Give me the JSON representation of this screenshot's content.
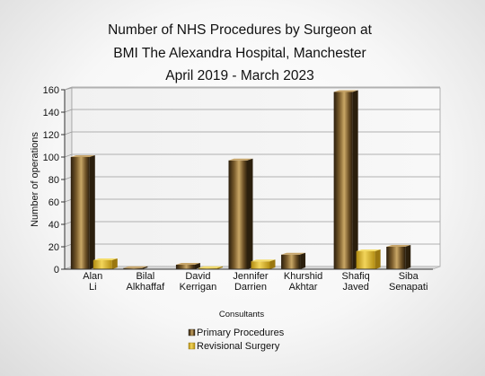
{
  "chart_data": {
    "type": "bar",
    "title": [
      "Number of NHS Procedures by Surgeon at",
      "BMI The Alexandra Hospital, Manchester",
      "April 2019 - March 2023"
    ],
    "xlabel": "Consultants",
    "ylabel": "Number of operations",
    "ylim": [
      0,
      160
    ],
    "yticks": [
      0,
      20,
      40,
      60,
      80,
      100,
      120,
      140,
      160
    ],
    "grid": true,
    "legend_position": "bottom",
    "categories": [
      [
        "Alan",
        "Li"
      ],
      [
        "Bilal",
        "Alkhaffaf"
      ],
      [
        "David",
        "Kerrigan"
      ],
      [
        "Jennifer",
        "Darrien"
      ],
      [
        "Khurshid",
        "Akhtar"
      ],
      [
        "Shafiq",
        "Javed"
      ],
      [
        "Siba",
        "Senapati"
      ]
    ],
    "series": [
      {
        "name": "Primary Procedures",
        "values": [
          100,
          1,
          4,
          97,
          13,
          158,
          20
        ],
        "color": "#3a2a14"
      },
      {
        "name": "Revisional Surgery",
        "values": [
          8,
          0,
          1,
          7,
          0,
          16,
          0
        ],
        "color": "#d9b218"
      }
    ]
  }
}
